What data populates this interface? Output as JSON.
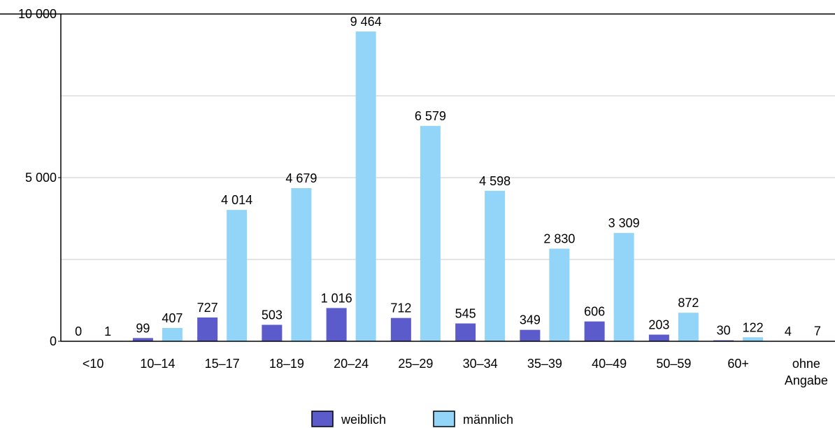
{
  "chart_data": {
    "type": "bar",
    "categories": [
      "<10",
      "10–14",
      "15–17",
      "18–19",
      "20–24",
      "25–29",
      "30–34",
      "35–39",
      "40–49",
      "50–59",
      "60+",
      "ohne Angabe"
    ],
    "series": [
      {
        "name": "weiblich",
        "color": "#5b5bcc",
        "values": [
          0,
          99,
          727,
          503,
          1016,
          712,
          545,
          349,
          606,
          203,
          30,
          4
        ],
        "value_labels": [
          "0",
          "99",
          "727",
          "503",
          "1 016",
          "712",
          "545",
          "349",
          "606",
          "203",
          "30",
          "4"
        ]
      },
      {
        "name": "männlich",
        "color": "#92d5f8",
        "values": [
          1,
          407,
          4014,
          4679,
          9464,
          6579,
          4598,
          2830,
          3309,
          872,
          122,
          7
        ],
        "value_labels": [
          "1",
          "407",
          "4 014",
          "4 679",
          "9 464",
          "6 579",
          "4 598",
          "2 830",
          "3 309",
          "872",
          "122",
          "7"
        ]
      }
    ],
    "ylim": [
      0,
      10000
    ],
    "yticks": [
      0,
      {
        "value": 5000,
        "label": "5 000"
      },
      {
        "value": 10000,
        "label": "10 000"
      }
    ],
    "ygrid": [
      2500,
      5000,
      7500
    ],
    "grid": true
  }
}
